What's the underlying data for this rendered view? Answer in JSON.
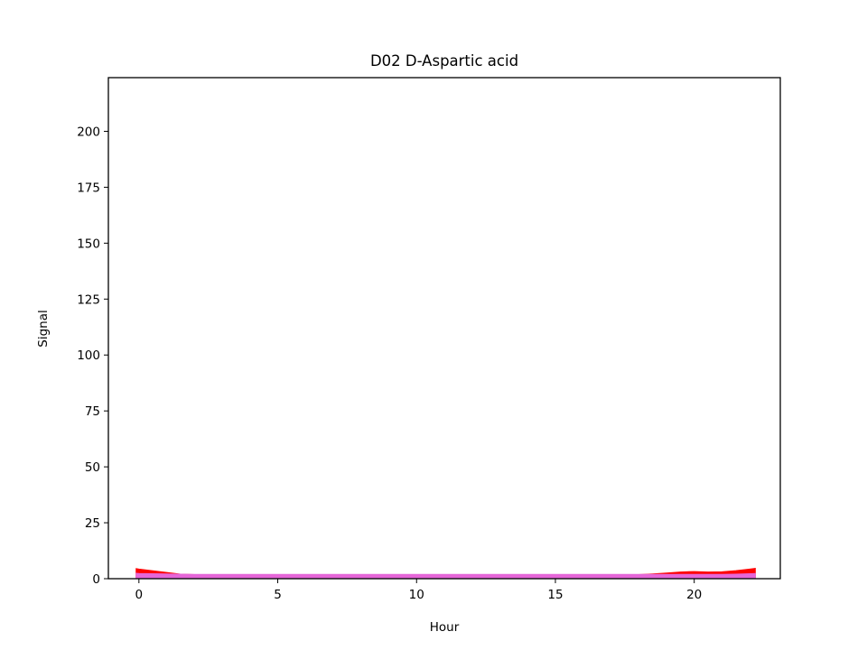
{
  "chart_data": {
    "type": "area",
    "title": "D02 D-Aspartic acid",
    "xlabel": "Hour",
    "ylabel": "Signal",
    "xlim": [
      -1.1,
      23.1
    ],
    "ylim": [
      0,
      224
    ],
    "xticks": [
      0,
      5,
      10,
      15,
      20
    ],
    "yticks": [
      0,
      25,
      50,
      75,
      100,
      125,
      150,
      175,
      200
    ],
    "grid": false,
    "x": [
      -0.1,
      0,
      1,
      1.5,
      2,
      3,
      4,
      5,
      6,
      7,
      8,
      9,
      10,
      11,
      12,
      13,
      14,
      15,
      16,
      17,
      18,
      18.5,
      19,
      19.5,
      20,
      20.5,
      21,
      21.5,
      22,
      22.2
    ],
    "series": [
      {
        "color": "#ff0000",
        "stroke": "#ff0000",
        "values": [
          4.5,
          4.3,
          2.8,
          2.0,
          1.8,
          1.6,
          1.6,
          1.6,
          1.6,
          1.6,
          1.6,
          1.6,
          1.6,
          1.6,
          1.6,
          1.6,
          1.6,
          1.6,
          1.6,
          1.6,
          1.8,
          2.1,
          2.5,
          3.0,
          3.2,
          3.0,
          3.1,
          3.6,
          4.3,
          4.6
        ]
      },
      {
        "color": "#e566d8",
        "stroke": "#e566d8",
        "values": [
          2.4,
          2.3,
          2.1,
          2.0,
          1.9,
          1.9,
          1.9,
          1.9,
          1.9,
          1.9,
          1.9,
          1.9,
          1.9,
          1.9,
          1.9,
          1.9,
          1.9,
          1.9,
          1.9,
          1.9,
          1.9,
          1.9,
          1.9,
          1.9,
          1.9,
          1.9,
          1.9,
          2.0,
          2.2,
          2.3
        ]
      }
    ]
  }
}
